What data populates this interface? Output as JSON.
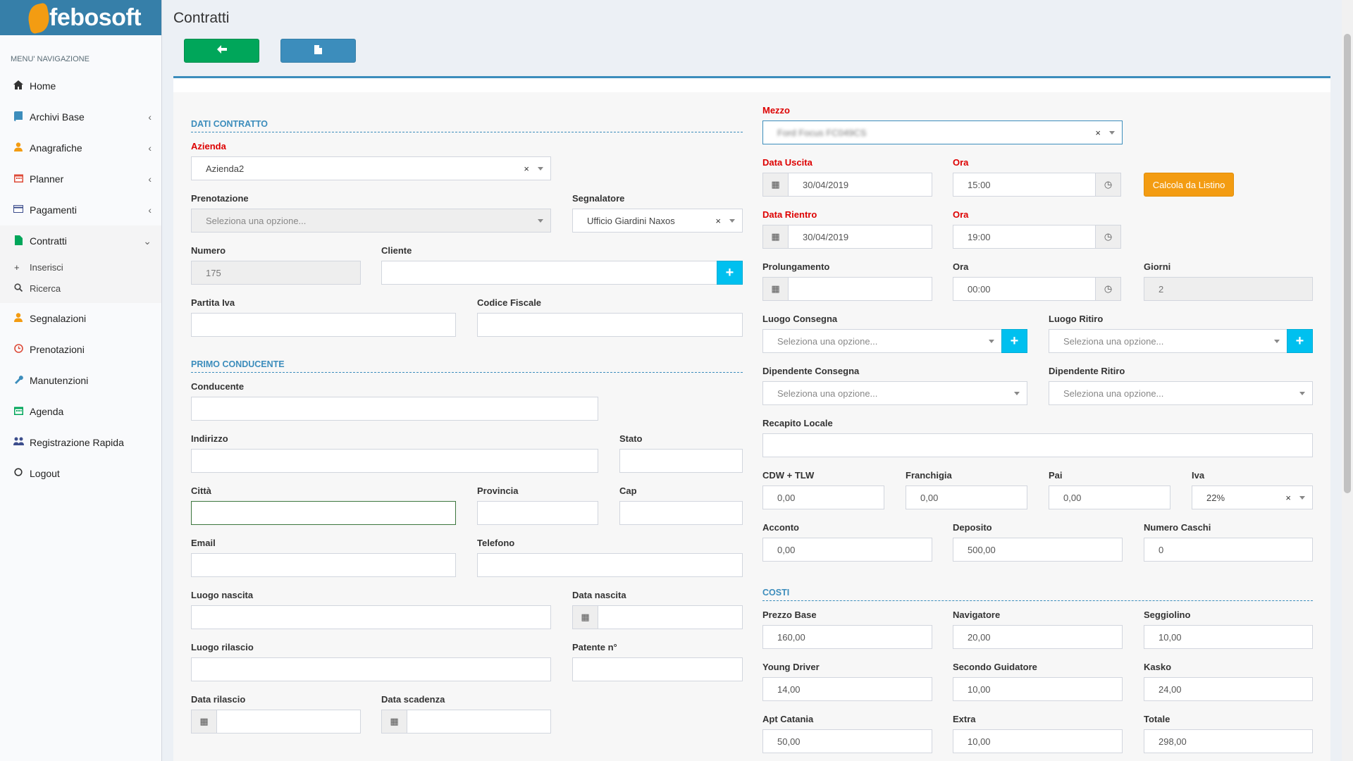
{
  "brand": {
    "name": "febosoft"
  },
  "sidebar": {
    "header": "MENU' NAVIGAZIONE",
    "items": [
      {
        "label": "Home",
        "icon": "home-icon"
      },
      {
        "label": "Archivi Base",
        "icon": "book-icon"
      },
      {
        "label": "Anagrafiche",
        "icon": "user-icon"
      },
      {
        "label": "Planner",
        "icon": "calendar-icon"
      },
      {
        "label": "Pagamenti",
        "icon": "credit-card-icon"
      },
      {
        "label": "Contratti",
        "icon": "file-icon"
      },
      {
        "label": "Segnalazioni",
        "icon": "user-icon"
      },
      {
        "label": "Prenotazioni",
        "icon": "clock-icon"
      },
      {
        "label": "Manutenzioni",
        "icon": "wrench-icon"
      },
      {
        "label": "Agenda",
        "icon": "calendar-icon"
      },
      {
        "label": "Registrazione Rapida",
        "icon": "users-icon"
      },
      {
        "label": "Logout",
        "icon": "circle-icon"
      }
    ],
    "sub_items": [
      {
        "label": "Inserisci"
      },
      {
        "label": "Ricerca"
      }
    ]
  },
  "page": {
    "title": "Contratti"
  },
  "sections": {
    "dati_contratto": "DATI CONTRATTO",
    "primo_conducente": "PRIMO CONDUCENTE",
    "costi": "COSTI"
  },
  "left": {
    "azienda": {
      "label": "Azienda",
      "value": "Azienda2"
    },
    "prenotazione": {
      "label": "Prenotazione",
      "placeholder": "Seleziona una opzione..."
    },
    "segnalatore": {
      "label": "Segnalatore",
      "value": "Ufficio Giardini Naxos"
    },
    "numero": {
      "label": "Numero",
      "value": "175"
    },
    "cliente": {
      "label": "Cliente",
      "value": ""
    },
    "partita_iva": {
      "label": "Partita Iva"
    },
    "codice_fiscale": {
      "label": "Codice Fiscale"
    },
    "conducente": {
      "label": "Conducente"
    },
    "indirizzo": {
      "label": "Indirizzo"
    },
    "stato": {
      "label": "Stato"
    },
    "citta": {
      "label": "Città"
    },
    "provincia": {
      "label": "Provincia"
    },
    "cap": {
      "label": "Cap"
    },
    "email": {
      "label": "Email"
    },
    "telefono": {
      "label": "Telefono"
    },
    "luogo_nascita": {
      "label": "Luogo nascita"
    },
    "data_nascita": {
      "label": "Data nascita"
    },
    "luogo_rilascio": {
      "label": "Luogo rilascio"
    },
    "patente": {
      "label": "Patente n°"
    },
    "data_rilascio": {
      "label": "Data rilascio"
    },
    "data_scadenza": {
      "label": "Data scadenza"
    }
  },
  "right": {
    "mezzo": {
      "label": "Mezzo",
      "value": "Ford Focus FC049CS"
    },
    "data_uscita": {
      "label": "Data Uscita",
      "value": "30/04/2019"
    },
    "ora_uscita": {
      "label": "Ora",
      "value": "15:00"
    },
    "calcola_button": "Calcola da Listino",
    "data_rientro": {
      "label": "Data Rientro",
      "value": "30/04/2019"
    },
    "ora_rientro": {
      "label": "Ora",
      "value": "19:00"
    },
    "prolungamento": {
      "label": "Prolungamento",
      "value": ""
    },
    "ora_prolungamento": {
      "label": "Ora",
      "value": "00:00"
    },
    "giorni": {
      "label": "Giorni",
      "value": "2"
    },
    "luogo_consegna": {
      "label": "Luogo Consegna",
      "placeholder": "Seleziona una opzione..."
    },
    "luogo_ritiro": {
      "label": "Luogo Ritiro",
      "placeholder": "Seleziona una opzione..."
    },
    "dipendente_consegna": {
      "label": "Dipendente Consegna",
      "placeholder": "Seleziona una opzione..."
    },
    "dipendente_ritiro": {
      "label": "Dipendente Ritiro",
      "placeholder": "Seleziona una opzione..."
    },
    "recapito_locale": {
      "label": "Recapito Locale"
    },
    "cdw_tlw": {
      "label": "CDW + TLW",
      "value": "0,00"
    },
    "franchigia": {
      "label": "Franchigia",
      "value": "0,00"
    },
    "pai": {
      "label": "Pai",
      "value": "0,00"
    },
    "iva": {
      "label": "Iva",
      "value": "22%"
    },
    "acconto": {
      "label": "Acconto",
      "value": "0,00"
    },
    "deposito": {
      "label": "Deposito",
      "value": "500,00"
    },
    "numero_caschi": {
      "label": "Numero Caschi",
      "value": "0"
    },
    "prezzo_base": {
      "label": "Prezzo Base",
      "value": "160,00"
    },
    "navigatore": {
      "label": "Navigatore",
      "value": "20,00"
    },
    "seggiolino": {
      "label": "Seggiolino",
      "value": "10,00"
    },
    "young_driver": {
      "label": "Young Driver",
      "value": "14,00"
    },
    "secondo_guidatore": {
      "label": "Secondo Guidatore",
      "value": "10,00"
    },
    "kasko": {
      "label": "Kasko",
      "value": "24,00"
    },
    "apt_catania": {
      "label": "Apt Catania",
      "value": "50,00"
    },
    "extra": {
      "label": "Extra",
      "value": "10,00"
    },
    "totale": {
      "label": "Totale",
      "value": "298,00"
    }
  },
  "colors": {
    "primary": "#3c8dbc",
    "success": "#00a65a",
    "warning": "#f39c12",
    "info": "#00c0ef",
    "required": "#dd0000"
  }
}
